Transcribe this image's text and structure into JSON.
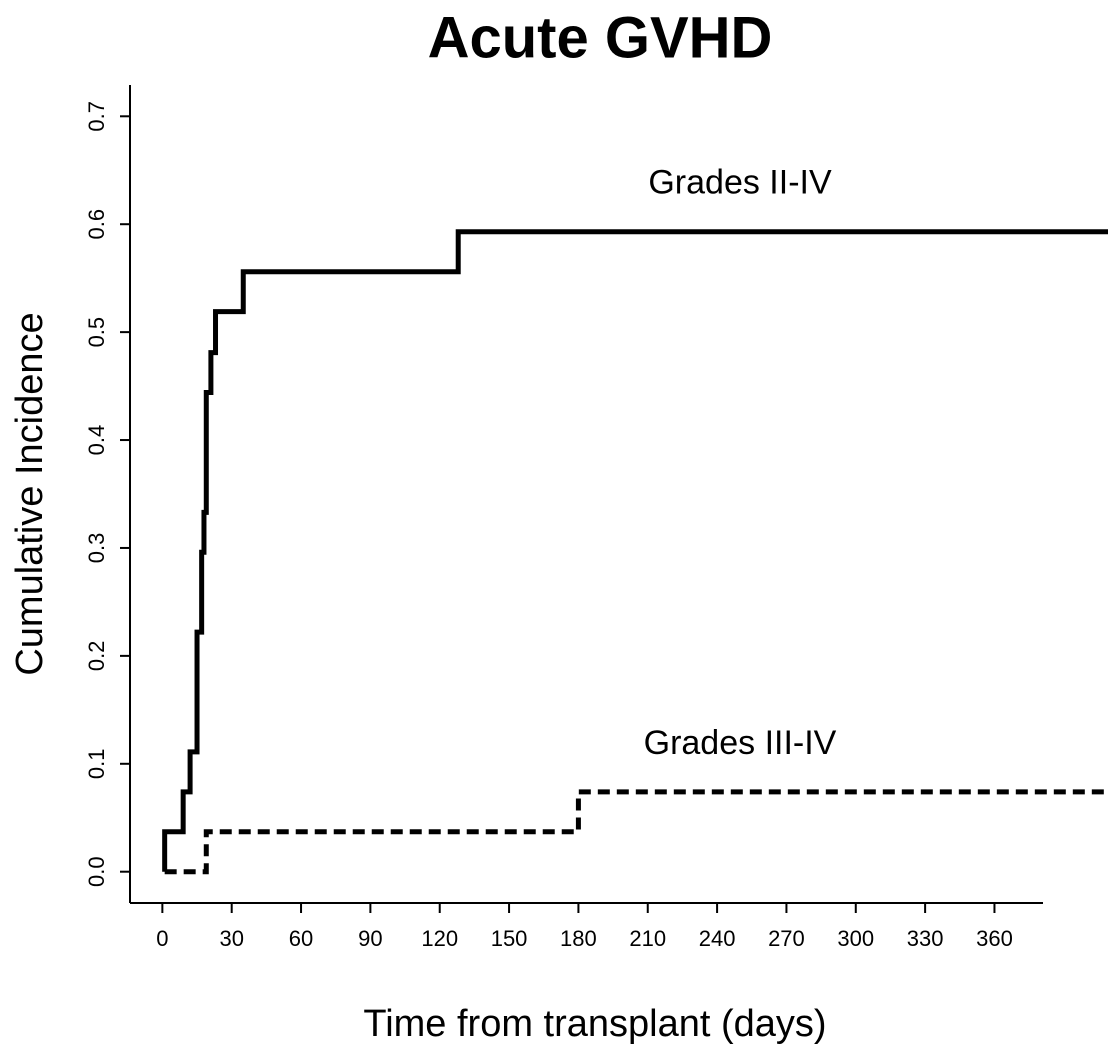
{
  "chart_data": {
    "type": "step",
    "title": "Acute GVHD",
    "xlabel": "Time from transplant (days)",
    "ylabel": "Cumulative Incidence",
    "xlim": [
      -14,
      381
    ],
    "ylim": [
      -0.029,
      0.729
    ],
    "xticks": [
      0,
      30,
      60,
      90,
      120,
      150,
      180,
      210,
      240,
      270,
      300,
      330,
      360
    ],
    "yticks": [
      {
        "value": 0,
        "label": "0.0"
      },
      0.1,
      0.2,
      0.3,
      0.4,
      0.5,
      0.6,
      0.7
    ],
    "grid": false,
    "series": [
      {
        "name": "Grades II-IV",
        "color": "#000000",
        "dash": false,
        "x": [
          1,
          1,
          9,
          12,
          15,
          17,
          18,
          19,
          21,
          23,
          35,
          128,
          410
        ],
        "values": [
          0,
          0.037,
          0.074,
          0.111,
          0.222,
          0.296,
          0.333,
          0.444,
          0.481,
          0.519,
          0.556,
          0.593,
          0.593
        ]
      },
      {
        "name": "Grades III-IV",
        "color": "#000000",
        "dash": true,
        "x": [
          1,
          19,
          180,
          410
        ],
        "values": [
          0,
          0.037,
          0.074,
          0.074
        ]
      }
    ]
  }
}
